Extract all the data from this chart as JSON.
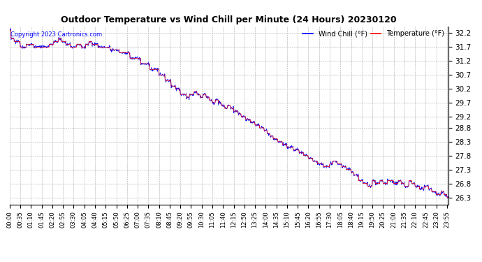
{
  "title": "Outdoor Temperature vs Wind Chill per Minute (24 Hours) 20230120",
  "copyright": "Copyright 2023 Cartronics.com",
  "legend_wind_chill": "Wind Chill (°F)",
  "legend_temperature": "Temperature (°F)",
  "wind_chill_color": "blue",
  "temperature_color": "red",
  "background_color": "white",
  "grid_color": "#aaaaaa",
  "ylim_min": 26.05,
  "ylim_max": 32.45,
  "yticks": [
    26.3,
    26.8,
    27.3,
    27.8,
    28.3,
    28.8,
    29.2,
    29.7,
    30.2,
    30.7,
    31.2,
    31.7,
    32.2
  ],
  "total_minutes": 1440,
  "tick_interval_minutes": 35
}
